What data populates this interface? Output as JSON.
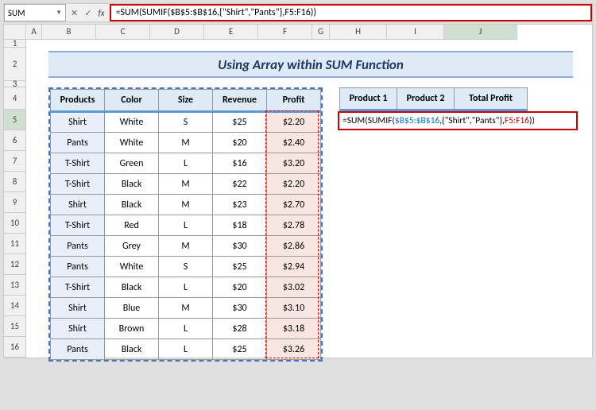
{
  "nameBox": "SUM",
  "formulaBarParts": [
    {
      "t": "=SUM(SUMIF(",
      "c": "fc-black"
    },
    {
      "t": "$B$5:$B$16",
      "c": "fc-black"
    },
    {
      "t": ",{\"Shirt\",\"Pants\"},",
      "c": "fc-black"
    },
    {
      "t": "F5:F16",
      "c": "fc-black"
    },
    {
      "t": "))",
      "c": "fc-black"
    }
  ],
  "inCellParts": [
    {
      "t": "=SUM(SUMIF(",
      "c": "fc-black"
    },
    {
      "t": "$B$5:$B$16",
      "c": "fc-blue"
    },
    {
      "t": ",{\"Shirt\",\"Pants\"},",
      "c": "fc-black"
    },
    {
      "t": "F5:F16",
      "c": "fc-red"
    },
    {
      "t": "))",
      "c": "fc-black"
    }
  ],
  "columns": [
    "",
    "A",
    "B",
    "C",
    "D",
    "E",
    "F",
    "G",
    "H",
    "I",
    "J"
  ],
  "title": "Using Array within SUM Function",
  "tableHeaders": [
    "Products",
    "Color",
    "Size",
    "Revenue",
    "Profit"
  ],
  "tableRows": [
    [
      "Shirt",
      "White",
      "S",
      "$25",
      "$2.20"
    ],
    [
      "Pants",
      "White",
      "M",
      "$20",
      "$2.40"
    ],
    [
      "T-Shirt",
      "Green",
      "L",
      "$16",
      "$3.20"
    ],
    [
      "T-Shirt",
      "Black",
      "M",
      "$22",
      "$2.20"
    ],
    [
      "Shirt",
      "Black",
      "M",
      "$23",
      "$2.70"
    ],
    [
      "T-Shirt",
      "Red",
      "L",
      "$18",
      "$2.78"
    ],
    [
      "Pants",
      "Grey",
      "M",
      "$30",
      "$2.86"
    ],
    [
      "Pants",
      "White",
      "S",
      "$25",
      "$2.94"
    ],
    [
      "T-Shirt",
      "Black",
      "L",
      "$20",
      "$3.02"
    ],
    [
      "Shirt",
      "Blue",
      "M",
      "$30",
      "$3.10"
    ],
    [
      "Shirt",
      "Brown",
      "L",
      "$28",
      "$3.18"
    ],
    [
      "Pants",
      "Black",
      "L",
      "$25",
      "$3.26"
    ]
  ],
  "sideHeaders": [
    "Product 1",
    "Product 2",
    "Total Profit"
  ],
  "rowNumbers": [
    1,
    2,
    3,
    4,
    5,
    6,
    7,
    8,
    9,
    10,
    11,
    12,
    13,
    14,
    15,
    16
  ],
  "colors": {
    "headerFill": "#deeaf6",
    "headerBorder": "#5b9bd5",
    "titleBorder": "#8ea9db",
    "titleText": "#1f3864",
    "prodFill": "#e8eff9",
    "profitFill": "#f9e6e2",
    "highlight": "#c00",
    "selectionDash": "#4472c4"
  }
}
